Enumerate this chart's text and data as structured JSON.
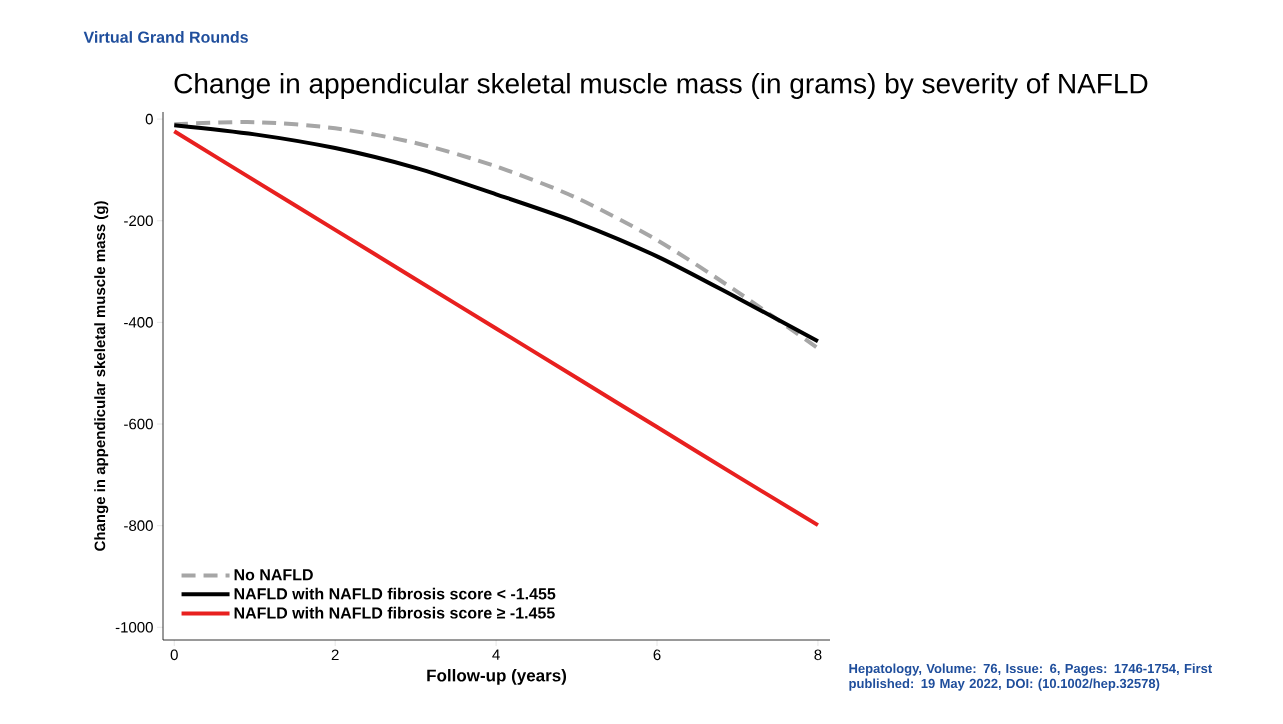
{
  "chart_data": {
    "type": "line",
    "title": "Change in appendicular skeletal muscle mass (in grams) by severity of NAFLD",
    "xlabel": "Follow-up (years)",
    "ylabel": "Change in appendicular skeletal muscle mass (g)",
    "annotations": [
      "Virtual Grand Rounds",
      "Hepatology, Volume: 76, Issue: 6, Pages: 1746-1754, First published: 19 May 2022, DOI: (10.1002/hep.32578)"
    ],
    "x": [
      0,
      1,
      2,
      3,
      4,
      5,
      6,
      7,
      8
    ],
    "series": [
      {
        "name": "No NAFLD",
        "color": "#a6a6a6",
        "line_style": "dashed",
        "values": [
          -10,
          -6,
          -18,
          -47,
          -93,
          -155,
          -238,
          -340,
          -451
        ]
      },
      {
        "name": "NAFLD with NAFLD fibrosis score < -1.455",
        "color": "#000000",
        "line_style": "solid",
        "values": [
          -12,
          -30,
          -57,
          -96,
          -148,
          -203,
          -270,
          -352,
          -437
        ]
      },
      {
        "name": "NAFLD with NAFLD fibrosis score ≥ -1.455",
        "color": "#e8201f",
        "line_style": "solid",
        "values": [
          -24,
          -121,
          -218,
          -315,
          -412,
          -509,
          -606,
          -703,
          -799
        ]
      }
    ],
    "xlim": [
      -0.14,
      8.15
    ],
    "ylim": [
      -1025,
      14
    ],
    "xticks": [
      0,
      2,
      4,
      6,
      8
    ],
    "yticks": [
      -1000,
      -800,
      -600,
      -400,
      -200,
      0
    ],
    "grid": false,
    "legend": "bottom left",
    "marker": "none"
  }
}
